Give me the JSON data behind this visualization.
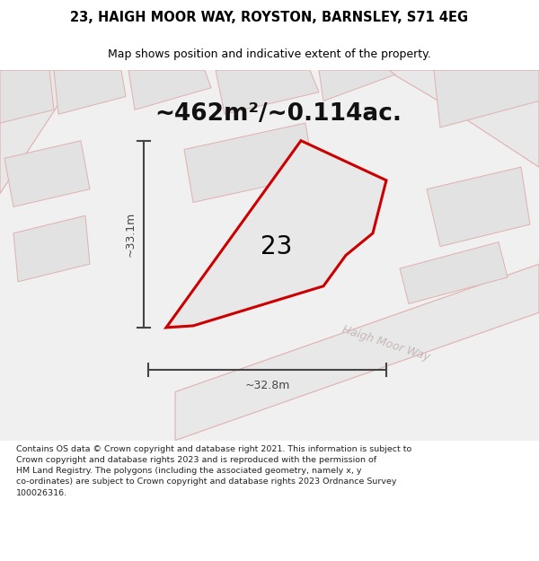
{
  "title_line1": "23, HAIGH MOOR WAY, ROYSTON, BARNSLEY, S71 4EG",
  "title_line2": "Map shows position and indicative extent of the property.",
  "area_label": "~462m²/~0.114ac.",
  "number_label": "23",
  "street_label": "Haigh Moor Way",
  "dim_horizontal": "~32.8m",
  "dim_vertical": "~33.1m",
  "footer_lines": [
    "Contains OS data © Crown copyright and database right 2021. This information is subject to",
    "Crown copyright and database rights 2023 and is reproduced with the permission of",
    "HM Land Registry. The polygons (including the associated geometry, namely x, y",
    "co-ordinates) are subject to Crown copyright and database rights 2023 Ordnance Survey",
    "100026316."
  ],
  "bg_color": "#ffffff",
  "map_bg": "#f0f0f0",
  "block_color": "#e2e2e2",
  "block_edge": "#e0b0b0",
  "road_color": "#e8e8e8",
  "road_edge": "#e0b0b0",
  "plot_fill": "#e8e8e8",
  "plot_outline": "#cc0000",
  "dim_color": "#444444",
  "title_color": "#000000",
  "street_label_color": "#c8b8b8",
  "number_color": "#000000",
  "area_color": "#111111",
  "footer_color": "#222222",
  "title_fontsize": 10.5,
  "subtitle_fontsize": 9.0,
  "area_fontsize": 19,
  "number_fontsize": 20,
  "street_fontsize": 9,
  "dim_fontsize": 9,
  "footer_fontsize": 6.8
}
